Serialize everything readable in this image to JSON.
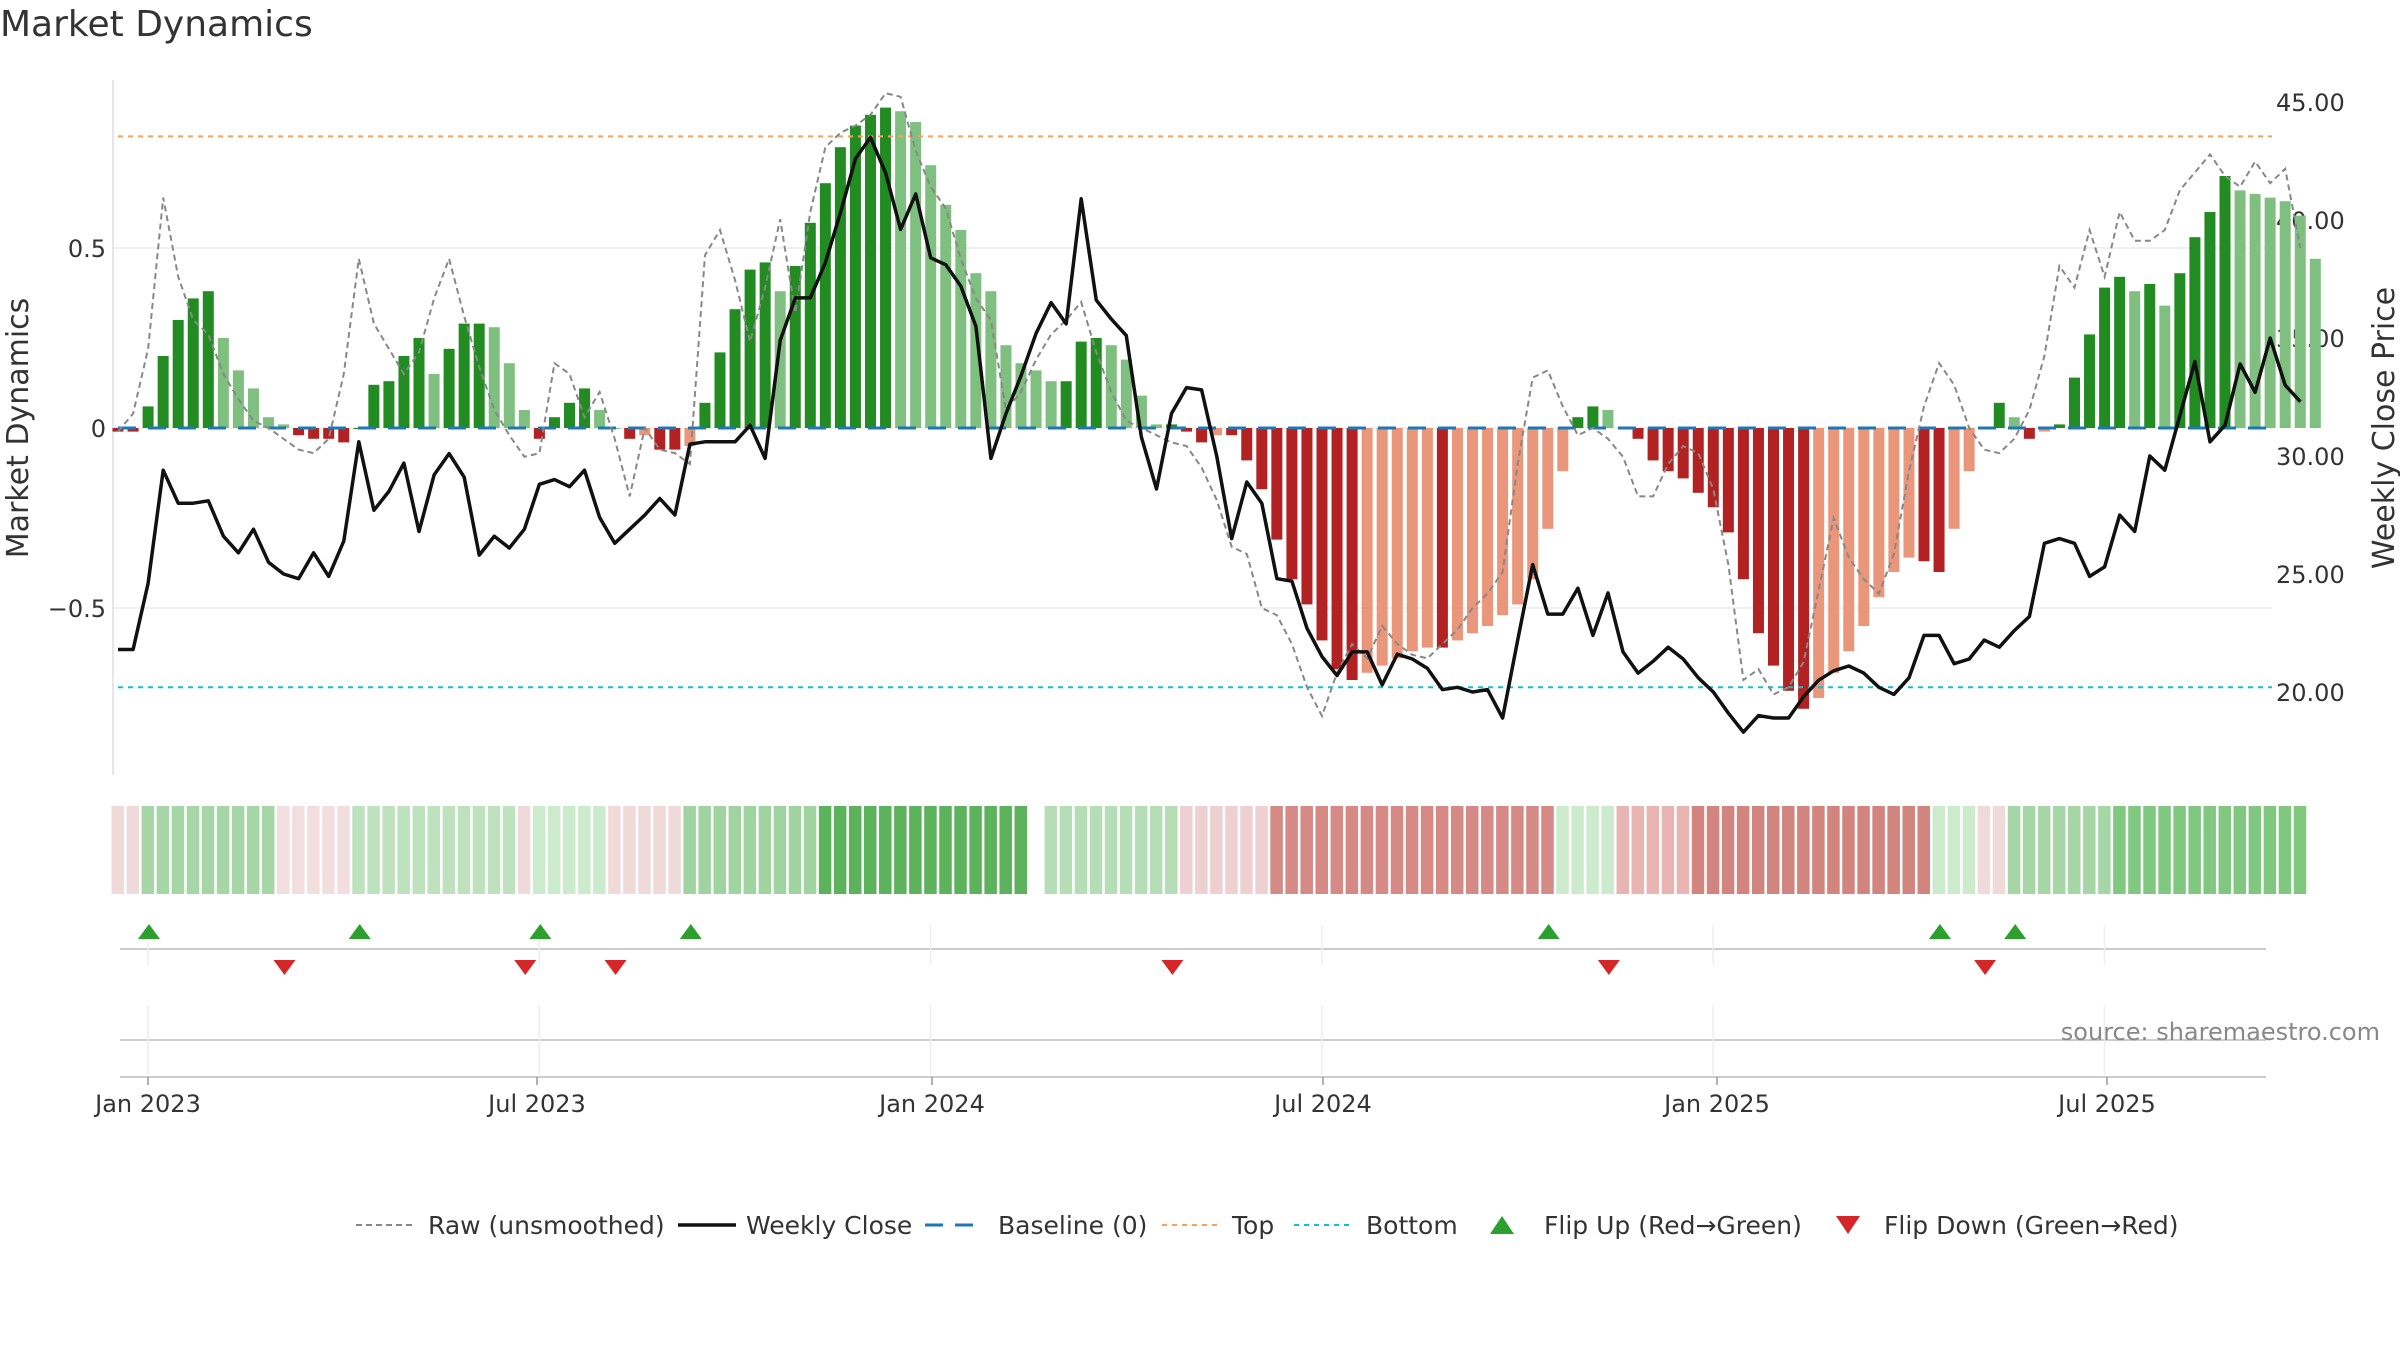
{
  "page": {
    "title": "Market Dynamics"
  },
  "colors": {
    "bar_green_dark": "#228b22",
    "bar_green_light": "#7fbf7f",
    "bar_red_dark": "#b22222",
    "bar_red_light": "#e9967a",
    "close_line": "#111111",
    "raw_line": "#888888",
    "baseline": "#1f77b4",
    "top_line": "#f4a261",
    "bottom_line": "#17becf",
    "flip_up": "#2ca02c",
    "flip_down": "#d62728"
  },
  "source": "source: sharemaestro.com",
  "chart_data": {
    "type": "bar",
    "title": "Market Dynamics",
    "ylabel_left": "Market Dynamics",
    "ylabel_right": "Weekly Close Price",
    "left_ticks": [
      0.5,
      0,
      -0.5
    ],
    "left_tick_labels": [
      "0.5",
      "0",
      "−0.5"
    ],
    "right_ticks": [
      45,
      40,
      35,
      30,
      25,
      20
    ],
    "right_tick_labels": [
      "45.00",
      "40.00",
      "35.00",
      "30.00",
      "25.00",
      "20.00"
    ],
    "x_tick_labels": [
      "Jan 2023",
      "Jul 2023",
      "Jan 2024",
      "Jul 2024",
      "Jan 2025",
      "Jul 2025"
    ],
    "x_tick_weeks": [
      0,
      26,
      52,
      78,
      104,
      130
    ],
    "top_level": 0.81,
    "bottom_level": -0.72,
    "baseline": 0,
    "grid": true,
    "legend_position": "bottom",
    "legend": [
      "Raw (unsmoothed)",
      "Weekly Close",
      "Baseline (0)",
      "Top",
      "Bottom",
      "Flip Up (Red→Green)",
      "Flip Down (Green→Red)"
    ],
    "dynamics": [
      -0.01,
      -0.01,
      0.06,
      0.2,
      0.3,
      0.36,
      0.38,
      0.25,
      0.16,
      0.11,
      0.03,
      0.01,
      -0.02,
      -0.03,
      -0.03,
      -0.04,
      0.0,
      0.12,
      0.13,
      0.2,
      0.25,
      0.15,
      0.22,
      0.29,
      0.29,
      0.28,
      0.18,
      0.05,
      -0.03,
      0.03,
      0.07,
      0.11,
      0.05,
      0.0,
      -0.03,
      -0.02,
      -0.06,
      -0.06,
      -0.05,
      0.07,
      0.21,
      0.33,
      0.44,
      0.46,
      0.38,
      0.45,
      0.57,
      0.68,
      0.78,
      0.84,
      0.87,
      0.89,
      0.88,
      0.85,
      0.73,
      0.62,
      0.55,
      0.43,
      0.38,
      0.23,
      0.18,
      0.16,
      0.13,
      0.13,
      0.24,
      0.25,
      0.23,
      0.19,
      0.09,
      0.01,
      0.01,
      -0.01,
      -0.04,
      -0.02,
      -0.02,
      -0.09,
      -0.17,
      -0.31,
      -0.42,
      -0.49,
      -0.59,
      -0.67,
      -0.7,
      -0.68,
      -0.66,
      -0.64,
      -0.62,
      -0.61,
      -0.61,
      -0.59,
      -0.57,
      -0.55,
      -0.52,
      -0.49,
      -0.42,
      -0.28,
      -0.12,
      0.03,
      0.06,
      0.05,
      0.0,
      -0.03,
      -0.09,
      -0.12,
      -0.14,
      -0.18,
      -0.22,
      -0.29,
      -0.42,
      -0.57,
      -0.66,
      -0.73,
      -0.78,
      -0.75,
      -0.68,
      -0.62,
      -0.55,
      -0.47,
      -0.4,
      -0.36,
      -0.37,
      -0.4,
      -0.28,
      -0.12,
      0.0,
      0.07,
      0.03,
      -0.03,
      -0.01,
      0.01,
      0.14,
      0.26,
      0.39,
      0.42,
      0.38,
      0.4,
      0.34,
      0.43,
      0.53,
      0.6,
      0.7,
      0.66,
      0.65,
      0.64,
      0.63,
      0.59,
      0.47
    ],
    "raw": [
      -0.01,
      0.04,
      0.22,
      0.64,
      0.42,
      0.3,
      0.26,
      0.15,
      0.08,
      0.02,
      0.0,
      -0.03,
      -0.06,
      -0.07,
      -0.03,
      0.15,
      0.47,
      0.29,
      0.22,
      0.15,
      0.21,
      0.36,
      0.47,
      0.31,
      0.17,
      0.05,
      -0.02,
      -0.08,
      -0.07,
      0.18,
      0.15,
      0.03,
      0.1,
      -0.03,
      -0.19,
      0.0,
      -0.06,
      -0.07,
      -0.1,
      0.48,
      0.55,
      0.41,
      0.24,
      0.39,
      0.58,
      0.32,
      0.6,
      0.78,
      0.82,
      0.84,
      0.87,
      0.93,
      0.92,
      0.77,
      0.67,
      0.61,
      0.47,
      0.36,
      0.3,
      0.05,
      0.1,
      0.19,
      0.26,
      0.3,
      0.35,
      0.21,
      0.1,
      0.02,
      0.0,
      -0.02,
      -0.04,
      -0.05,
      -0.11,
      -0.2,
      -0.33,
      -0.35,
      -0.5,
      -0.52,
      -0.6,
      -0.72,
      -0.8,
      -0.68,
      -0.6,
      -0.64,
      -0.55,
      -0.6,
      -0.63,
      -0.64,
      -0.6,
      -0.56,
      -0.5,
      -0.46,
      -0.4,
      -0.1,
      0.14,
      0.16,
      0.06,
      -0.02,
      0.0,
      -0.03,
      -0.08,
      -0.19,
      -0.19,
      -0.1,
      -0.05,
      -0.07,
      -0.17,
      -0.38,
      -0.7,
      -0.67,
      -0.74,
      -0.72,
      -0.65,
      -0.45,
      -0.25,
      -0.36,
      -0.42,
      -0.46,
      -0.35,
      -0.12,
      0.06,
      0.18,
      0.12,
      0.0,
      -0.06,
      -0.07,
      -0.03,
      0.05,
      0.2,
      0.45,
      0.39,
      0.55,
      0.42,
      0.6,
      0.52,
      0.52,
      0.55,
      0.66,
      0.71,
      0.76,
      0.7,
      0.67,
      0.74,
      0.68,
      0.72,
      0.5
    ],
    "close": [
      21.8,
      21.8,
      24.6,
      29.4,
      28.0,
      28.0,
      28.1,
      26.6,
      25.9,
      26.9,
      25.5,
      25.0,
      24.8,
      25.9,
      24.9,
      26.4,
      30.6,
      27.7,
      28.5,
      29.7,
      26.8,
      29.2,
      30.1,
      29.1,
      25.8,
      26.6,
      26.1,
      26.9,
      28.8,
      29.0,
      28.7,
      29.4,
      27.4,
      26.3,
      26.9,
      27.5,
      28.2,
      27.5,
      30.5,
      30.6,
      30.6,
      30.6,
      31.3,
      29.9,
      34.9,
      36.7,
      36.7,
      38.2,
      40.3,
      42.6,
      43.5,
      42.0,
      39.6,
      41.1,
      38.4,
      38.1,
      37.2,
      35.5,
      29.9,
      31.8,
      33.4,
      35.2,
      36.5,
      35.6,
      40.9,
      36.6,
      35.8,
      35.1,
      30.8,
      28.6,
      31.8,
      32.9,
      32.8,
      30.0,
      26.5,
      28.9,
      28.0,
      24.8,
      24.7,
      22.7,
      21.5,
      20.7,
      21.7,
      21.7,
      20.3,
      21.6,
      21.4,
      21.0,
      20.1,
      20.2,
      20.0,
      20.1,
      18.9,
      22.2,
      25.4,
      23.3,
      23.3,
      24.4,
      22.4,
      24.2,
      21.7,
      20.8,
      21.3,
      21.9,
      21.4,
      20.6,
      20.0,
      19.1,
      18.3,
      19.0,
      18.9,
      18.9,
      19.8,
      20.5,
      20.9,
      21.1,
      20.8,
      20.2,
      19.9,
      20.6,
      22.4,
      22.4,
      21.2,
      21.4,
      22.2,
      21.9,
      22.6,
      23.2,
      26.3,
      26.5,
      26.3,
      24.9,
      25.3,
      27.5,
      26.8,
      30.0,
      29.4,
      31.7,
      34.0,
      30.6,
      31.3,
      33.9,
      32.7,
      35.0,
      33.0,
      32.3
    ]
  },
  "flips": {
    "up_weeks": [
      0,
      14,
      26,
      36,
      93,
      119,
      124
    ],
    "down_weeks": [
      9,
      25,
      31,
      68,
      97,
      122
    ]
  },
  "heat_strip": {
    "ranges": [
      {
        "from": 0,
        "to": 1,
        "color": "#efd9d9"
      },
      {
        "from": 2,
        "to": 10,
        "color": "#a6d6a6"
      },
      {
        "from": 11,
        "to": 15,
        "color": "#f2dede"
      },
      {
        "from": 16,
        "to": 26,
        "color": "#bde2bd"
      },
      {
        "from": 27,
        "to": 27,
        "color": "#efd9d9"
      },
      {
        "from": 28,
        "to": 32,
        "color": "#cceacc"
      },
      {
        "from": 33,
        "to": 37,
        "color": "#efd9d9"
      },
      {
        "from": 38,
        "to": 46,
        "color": "#9fd39f"
      },
      {
        "from": 47,
        "to": 60,
        "color": "#5cb35c"
      },
      {
        "from": 61,
        "to": 61,
        "color": "#ffffff"
      },
      {
        "from": 62,
        "to": 70,
        "color": "#b6deb6"
      },
      {
        "from": 71,
        "to": 76,
        "color": "#efd0d0"
      },
      {
        "from": 77,
        "to": 95,
        "color": "#d58a86"
      },
      {
        "from": 96,
        "to": 99,
        "color": "#cceacc"
      },
      {
        "from": 100,
        "to": 104,
        "color": "#e8b5b3"
      },
      {
        "from": 105,
        "to": 120,
        "color": "#d2847f"
      },
      {
        "from": 121,
        "to": 123,
        "color": "#cceacc"
      },
      {
        "from": 124,
        "to": 125,
        "color": "#efd9d9"
      },
      {
        "from": 126,
        "to": 132,
        "color": "#a6d6a6"
      },
      {
        "from": 133,
        "to": 145,
        "color": "#80c780"
      }
    ]
  }
}
